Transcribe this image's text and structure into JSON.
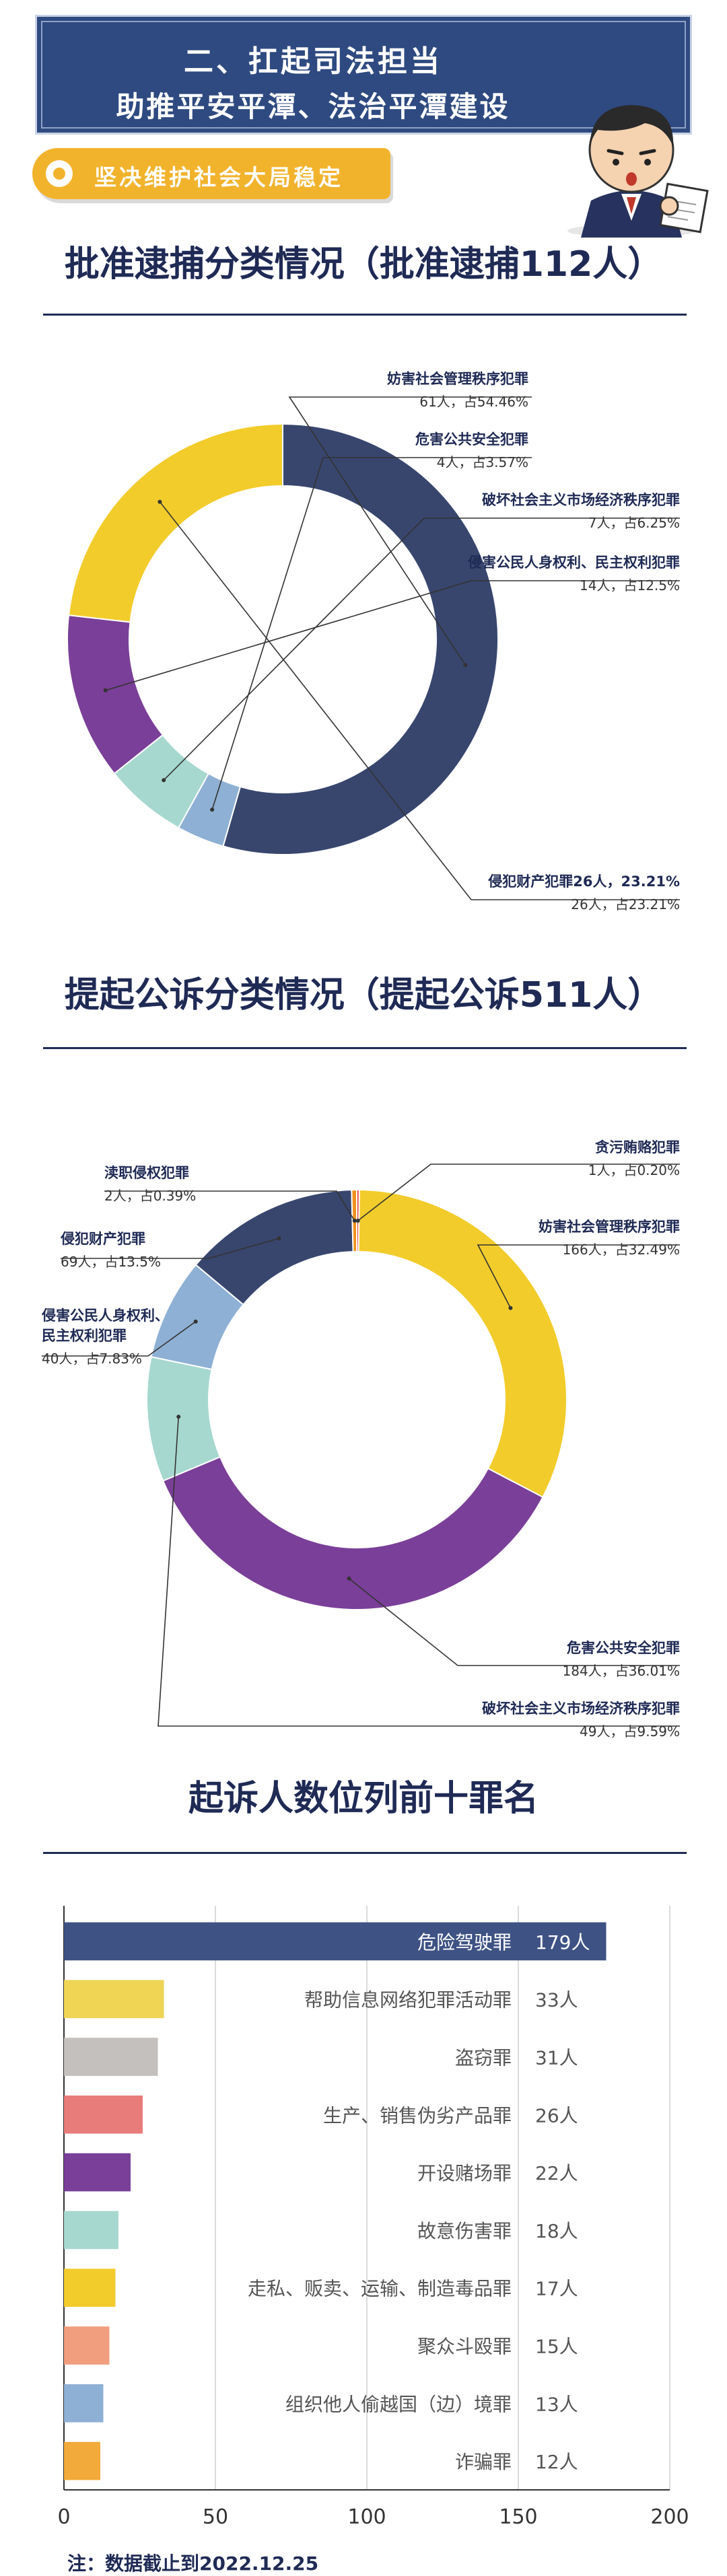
{
  "banner": {
    "line1": "二、扛起司法担当",
    "line2": "助推平安平潭、法治平潭建设"
  },
  "pill_label": "坚决维护社会大局稳定",
  "colors": {
    "navy": "#2e4a80",
    "gold": "#f2b32c",
    "title": "#1f2a55"
  },
  "chart_data": [
    {
      "type": "pie",
      "title": "批准逮捕分类情况（批准逮捕112人）",
      "donut": true,
      "categories": [
        "妨害社会管理秩序犯罪",
        "危害公共安全犯罪",
        "破坏社会主义市场经济秩序犯罪",
        "侵害公民人身权利、民主权利犯罪",
        "侵犯财产犯罪26人，23.21%"
      ],
      "values": [
        61,
        4,
        7,
        14,
        26
      ],
      "value_labels": [
        "61人，占54.46%",
        "4人，占3.57%",
        "7人，占6.25%",
        "14人，占12.5%",
        "26人，占23.21%"
      ],
      "colors": [
        "#38466e",
        "#8eb0d4",
        "#a6d8cf",
        "#7a3f98",
        "#f2cc2b"
      ]
    },
    {
      "type": "pie",
      "title": "提起公诉分类情况（提起公诉511人）",
      "donut": true,
      "categories": [
        "贪污贿赂犯罪",
        "妨害社会管理秩序犯罪",
        "危害公共安全犯罪",
        "破坏社会主义市场经济秩序犯罪",
        "侵害公民人身权利、民主权利犯罪",
        "侵犯财产犯罪",
        "渎职侵权犯罪"
      ],
      "values": [
        1,
        166,
        184,
        49,
        40,
        69,
        2
      ],
      "value_labels": [
        "1人，占0.20%",
        "166人，占32.49%",
        "184人，占36.01%",
        "49人，占9.59%",
        "40人，占7.83%",
        "69人，占13.5%",
        "2人，占0.39%"
      ],
      "colors": [
        "#e0312a",
        "#f2cc2b",
        "#7a3f98",
        "#a6d8cf",
        "#8eb0d4",
        "#38466e",
        "#f0921e"
      ]
    },
    {
      "type": "bar",
      "orientation": "horizontal",
      "title": "起诉人数位列前十罪名",
      "categories": [
        "危险驾驶罪",
        "帮助信息网络犯罪活动罪",
        "盗窃罪",
        "生产、销售伪劣产品罪",
        "开设赌场罪",
        "故意伤害罪",
        "走私、贩卖、运输、制造毒品罪",
        "聚众斗殴罪",
        "组织他人偷越国（边）境罪",
        "诈骗罪"
      ],
      "values": [
        179,
        33,
        31,
        26,
        22,
        18,
        17,
        15,
        13,
        12
      ],
      "value_labels": [
        "179人",
        "33人",
        "31人",
        "26人",
        "22人",
        "18人",
        "17人",
        "15人",
        "13人",
        "12人"
      ],
      "colors": [
        "#3e5284",
        "#f0d454",
        "#c3c0bd",
        "#e87c7a",
        "#7a3f98",
        "#a6d8cf",
        "#f2cc2b",
        "#f09e7e",
        "#8eb0d4",
        "#f2aa3a"
      ],
      "xlim": [
        0,
        200
      ],
      "xticks": [
        "0",
        "50",
        "100",
        "150",
        "200"
      ],
      "grid": true
    }
  ],
  "note": "注：数据截止到2022.12.25"
}
